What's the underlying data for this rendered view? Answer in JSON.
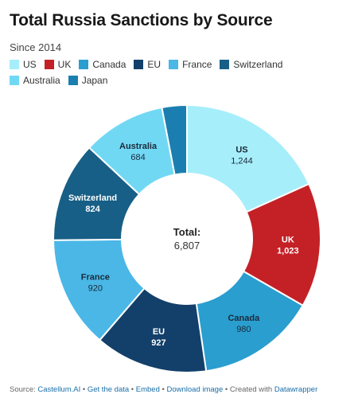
{
  "header": {
    "title": "Total Russia Sanctions by Source",
    "subtitle": "Since 2014"
  },
  "chart_data": {
    "type": "pie",
    "style": "donut",
    "legend_position": "top",
    "categories": [
      "US",
      "UK",
      "Canada",
      "EU",
      "France",
      "Switzerland",
      "Australia",
      "Japan"
    ],
    "values": [
      1244,
      1023,
      980,
      927,
      920,
      824,
      684,
      205
    ],
    "value_labels": [
      "1,244",
      "1,023",
      "980",
      "927",
      "920",
      "824",
      "684",
      ""
    ],
    "colors": [
      "#a6eefa",
      "#c42126",
      "#2a9ecf",
      "#13406a",
      "#4ab7e6",
      "#175f86",
      "#71d8f4",
      "#1a7fb0"
    ],
    "center_label": "Total:",
    "center_value": "6,807"
  },
  "footer": {
    "source_label": "Source:",
    "source_name": "Castellum.AI",
    "sep1": "•",
    "get_data": "Get the data",
    "sep2": "•",
    "embed": "Embed",
    "sep3": "•",
    "download": "Download image",
    "sep4": "•",
    "created_with": "Created with",
    "tool": "Datawrapper"
  }
}
